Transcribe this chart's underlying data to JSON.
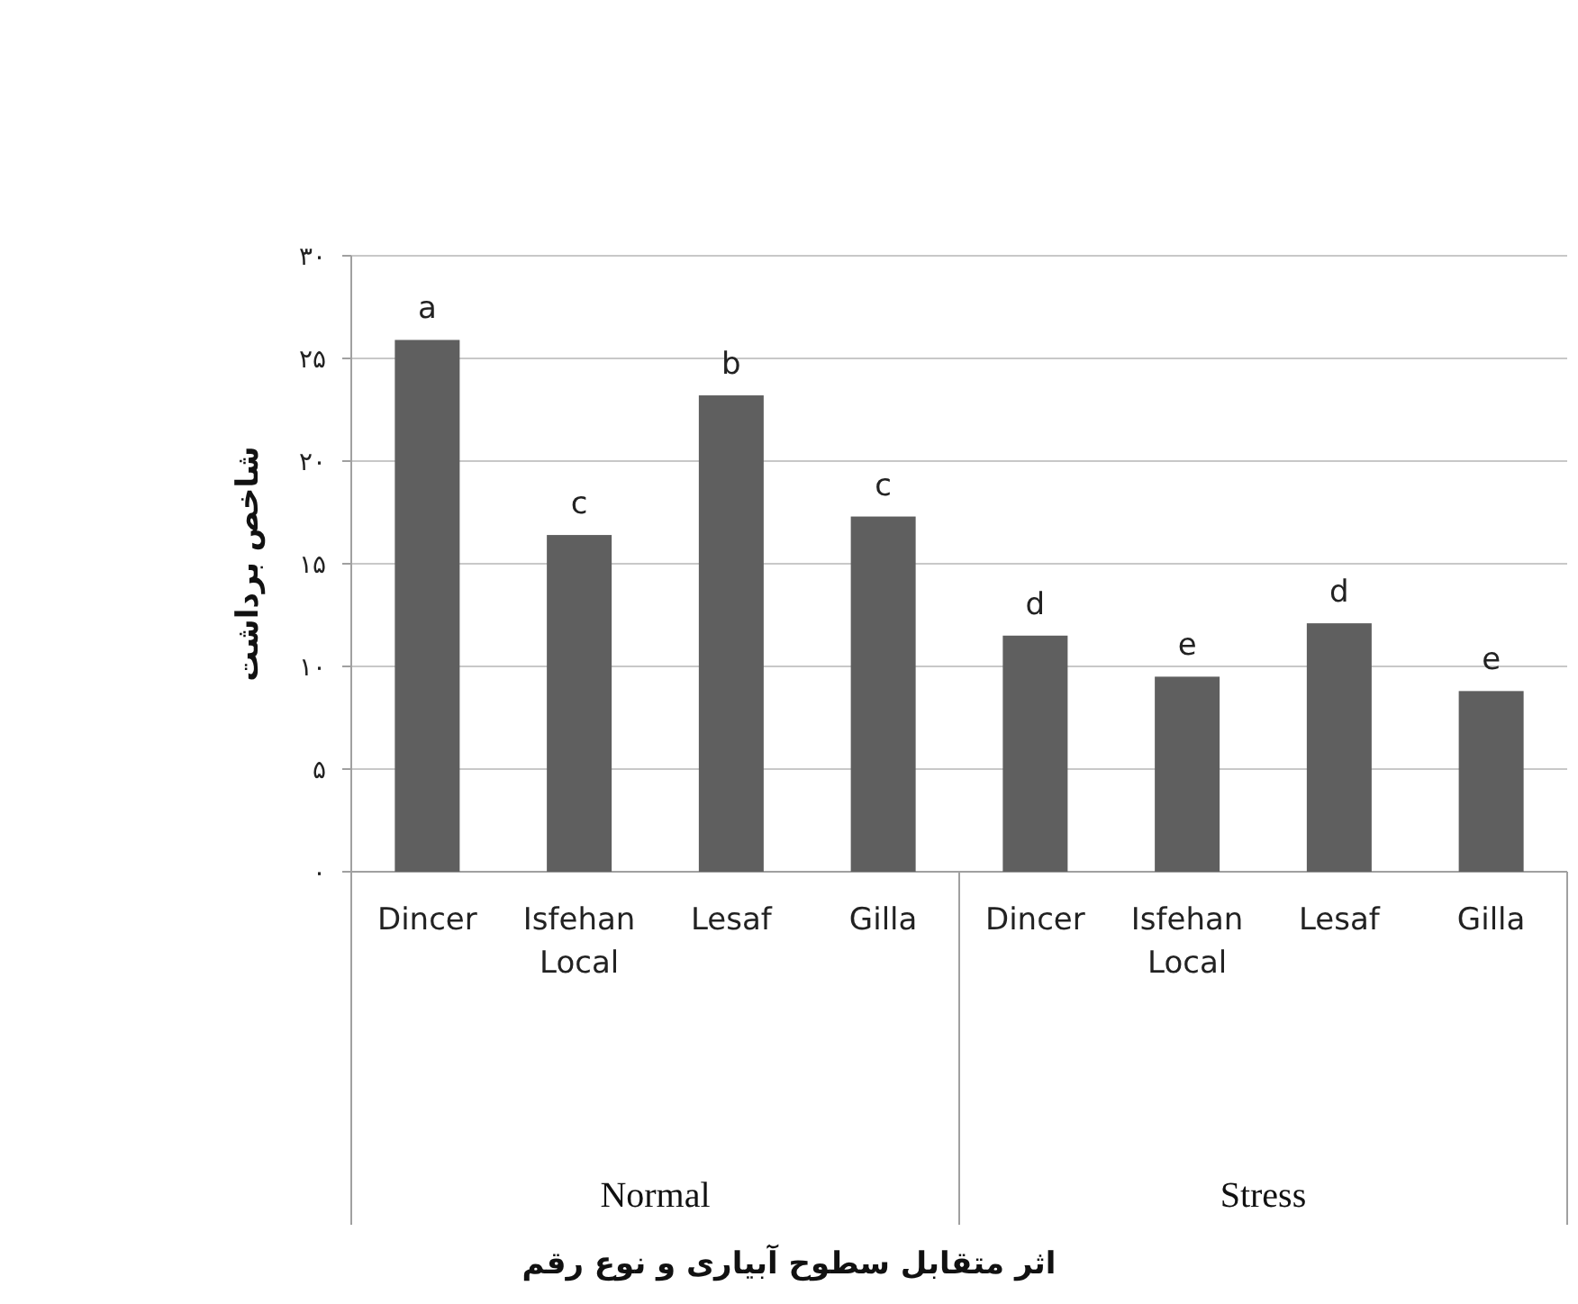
{
  "chart_data": {
    "type": "bar",
    "ylabel": "شاخص برداشت",
    "categories": [
      "Dincer",
      "Isfehan Local",
      "Lesaf",
      "Gilla",
      "Dincer",
      "Isfehan Local",
      "Lesaf",
      "Gilla"
    ],
    "values": [
      25.9,
      16.4,
      23.2,
      17.3,
      11.5,
      9.5,
      12.1,
      8.8
    ],
    "value_labels": [
      "a",
      "c",
      "b",
      "c",
      "d",
      "e",
      "d",
      "e"
    ],
    "color": "#5f5f5f",
    "ylim": [
      0,
      30
    ],
    "yticks": [
      {
        "value": 0,
        "label": "۰"
      },
      {
        "value": 5,
        "label": "۵"
      },
      {
        "value": 10,
        "label": "۱۰"
      },
      {
        "value": 15,
        "label": "۱۵"
      },
      {
        "value": 20,
        "label": "۲۰"
      },
      {
        "value": 25,
        "label": "۲۵"
      },
      {
        "value": 30,
        "label": "۳۰"
      }
    ],
    "grid": "y",
    "annotations": [
      "Normal",
      "Stress",
      "اثر متقابل سطوح آبیاری و نوع رقم"
    ]
  }
}
